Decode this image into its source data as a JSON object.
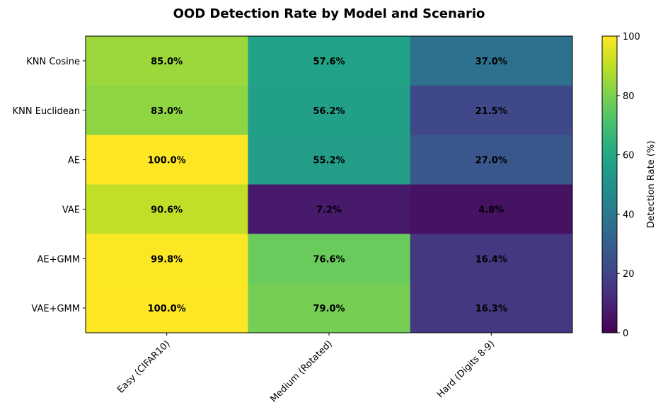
{
  "chart_data": {
    "type": "heatmap",
    "title": "OOD Detection Rate by Model and Scenario",
    "rows": [
      "KNN Cosine",
      "KNN Euclidean",
      "AE",
      "VAE",
      "AE+GMM",
      "VAE+GMM"
    ],
    "columns": [
      "Easy (CIFAR10)",
      "Medium (Rotated)",
      "Hard (Digits 8-9)"
    ],
    "values": [
      [
        85.0,
        57.6,
        37.0
      ],
      [
        83.0,
        56.2,
        21.5
      ],
      [
        100.0,
        55.2,
        27.0
      ],
      [
        90.6,
        7.2,
        4.8
      ],
      [
        99.8,
        76.6,
        16.4
      ],
      [
        100.0,
        79.0,
        16.3
      ]
    ],
    "value_labels": [
      [
        "85.0%",
        "57.6%",
        "37.0%"
      ],
      [
        "83.0%",
        "56.2%",
        "21.5%"
      ],
      [
        "100.0%",
        "55.2%",
        "27.0%"
      ],
      [
        "90.6%",
        "7.2%",
        "4.8%"
      ],
      [
        "99.8%",
        "76.6%",
        "16.4%"
      ],
      [
        "100.0%",
        "79.0%",
        "16.3%"
      ]
    ],
    "colormap": "viridis",
    "colorbar": {
      "label": "Detection Rate (%)",
      "range": [
        0,
        100
      ],
      "ticks": [
        "0",
        "20",
        "40",
        "60",
        "80",
        "100"
      ]
    }
  }
}
